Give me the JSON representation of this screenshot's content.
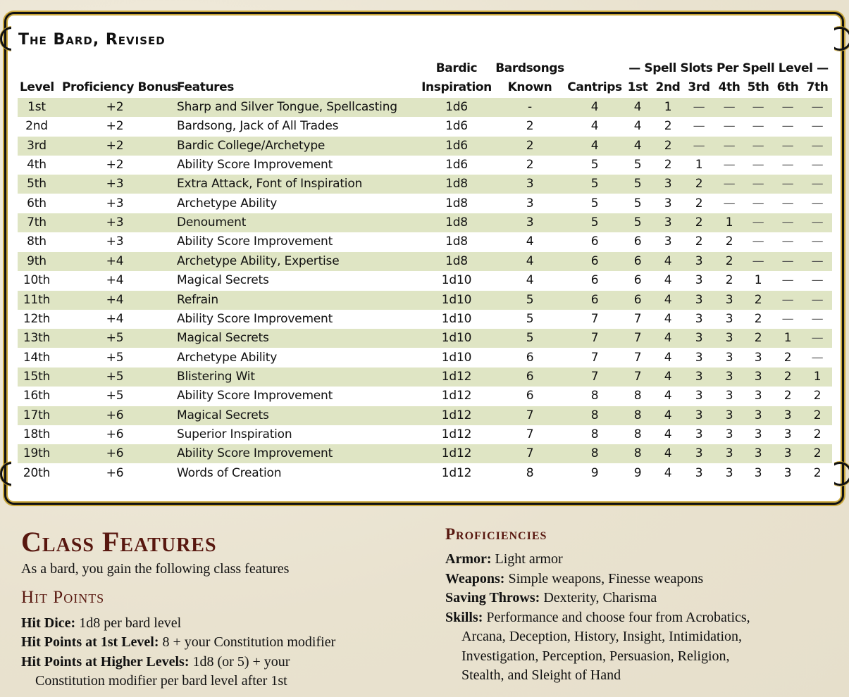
{
  "table": {
    "title": "The Bard, Revised",
    "headers": {
      "level": "Level",
      "proficiency": "Proficiency Bonus",
      "features": "Features",
      "inspiration_1": "Bardic",
      "inspiration_2": "Inspiration",
      "bardsongs_1": "Bardsongs",
      "bardsongs_2": "Known",
      "cantrips": "Cantrips",
      "spell_slots_group": "— Spell Slots Per Spell Level —",
      "slots": [
        "1st",
        "2nd",
        "3rd",
        "4th",
        "5th",
        "6th",
        "7th"
      ]
    },
    "rows": [
      {
        "level": "1st",
        "prof": "+2",
        "features": "Sharp and Silver Tongue, Spellcasting",
        "insp": "1d6",
        "songs": "-",
        "cantrips": "4",
        "slots": [
          "4",
          "1",
          "—",
          "—",
          "—",
          "—",
          "—"
        ]
      },
      {
        "level": "2nd",
        "prof": "+2",
        "features": "Bardsong, Jack of All Trades",
        "insp": "1d6",
        "songs": "2",
        "cantrips": "4",
        "slots": [
          "4",
          "2",
          "—",
          "—",
          "—",
          "—",
          "—"
        ]
      },
      {
        "level": "3rd",
        "prof": "+2",
        "features": "Bardic College/Archetype",
        "insp": "1d6",
        "songs": "2",
        "cantrips": "4",
        "slots": [
          "4",
          "2",
          "—",
          "—",
          "—",
          "—",
          "—"
        ]
      },
      {
        "level": "4th",
        "prof": "+2",
        "features": "Ability Score Improvement",
        "insp": "1d6",
        "songs": "2",
        "cantrips": "5",
        "slots": [
          "5",
          "2",
          "1",
          "—",
          "—",
          "—",
          "—"
        ]
      },
      {
        "level": "5th",
        "prof": "+3",
        "features": "Extra Attack, Font of Inspiration",
        "insp": "1d8",
        "songs": "3",
        "cantrips": "5",
        "slots": [
          "5",
          "3",
          "2",
          "—",
          "—",
          "—",
          "—"
        ]
      },
      {
        "level": "6th",
        "prof": "+3",
        "features": "Archetype Ability",
        "insp": "1d8",
        "songs": "3",
        "cantrips": "5",
        "slots": [
          "5",
          "3",
          "2",
          "—",
          "—",
          "—",
          "—"
        ]
      },
      {
        "level": "7th",
        "prof": "+3",
        "features": "Denoument",
        "insp": "1d8",
        "songs": "3",
        "cantrips": "5",
        "slots": [
          "5",
          "3",
          "2",
          "1",
          "—",
          "—",
          "—"
        ]
      },
      {
        "level": "8th",
        "prof": "+3",
        "features": "Ability Score Improvement",
        "insp": "1d8",
        "songs": "4",
        "cantrips": "6",
        "slots": [
          "6",
          "3",
          "2",
          "2",
          "—",
          "—",
          "—"
        ]
      },
      {
        "level": "9th",
        "prof": "+4",
        "features": "Archetype Ability, Expertise",
        "insp": "1d8",
        "songs": "4",
        "cantrips": "6",
        "slots": [
          "6",
          "4",
          "3",
          "2",
          "—",
          "—",
          "—"
        ]
      },
      {
        "level": "10th",
        "prof": "+4",
        "features": "Magical Secrets",
        "insp": "1d10",
        "songs": "4",
        "cantrips": "6",
        "slots": [
          "6",
          "4",
          "3",
          "2",
          "1",
          "—",
          "—"
        ]
      },
      {
        "level": "11th",
        "prof": "+4",
        "features": "Refrain",
        "insp": "1d10",
        "songs": "5",
        "cantrips": "6",
        "slots": [
          "6",
          "4",
          "3",
          "3",
          "2",
          "—",
          "—"
        ]
      },
      {
        "level": "12th",
        "prof": "+4",
        "features": "Ability Score Improvement",
        "insp": "1d10",
        "songs": "5",
        "cantrips": "7",
        "slots": [
          "7",
          "4",
          "3",
          "3",
          "2",
          "—",
          "—"
        ]
      },
      {
        "level": "13th",
        "prof": "+5",
        "features": "Magical Secrets",
        "insp": "1d10",
        "songs": "5",
        "cantrips": "7",
        "slots": [
          "7",
          "4",
          "3",
          "3",
          "2",
          "1",
          "—"
        ]
      },
      {
        "level": "14th",
        "prof": "+5",
        "features": "Archetype Ability",
        "insp": "1d10",
        "songs": "6",
        "cantrips": "7",
        "slots": [
          "7",
          "4",
          "3",
          "3",
          "3",
          "2",
          "—"
        ]
      },
      {
        "level": "15th",
        "prof": "+5",
        "features": "Blistering Wit",
        "insp": "1d12",
        "songs": "6",
        "cantrips": "7",
        "slots": [
          "7",
          "4",
          "3",
          "3",
          "3",
          "2",
          "1"
        ]
      },
      {
        "level": "16th",
        "prof": "+5",
        "features": "Ability Score Improvement",
        "insp": "1d12",
        "songs": "6",
        "cantrips": "8",
        "slots": [
          "8",
          "4",
          "3",
          "3",
          "3",
          "2",
          "2"
        ]
      },
      {
        "level": "17th",
        "prof": "+6",
        "features": "Magical Secrets",
        "insp": "1d12",
        "songs": "7",
        "cantrips": "8",
        "slots": [
          "8",
          "4",
          "3",
          "3",
          "3",
          "3",
          "2"
        ]
      },
      {
        "level": "18th",
        "prof": "+6",
        "features": "Superior Inspiration",
        "insp": "1d12",
        "songs": "7",
        "cantrips": "8",
        "slots": [
          "8",
          "4",
          "3",
          "3",
          "3",
          "3",
          "2"
        ]
      },
      {
        "level": "19th",
        "prof": "+6",
        "features": "Ability Score Improvement",
        "insp": "1d12",
        "songs": "7",
        "cantrips": "8",
        "slots": [
          "8",
          "4",
          "3",
          "3",
          "3",
          "3",
          "2"
        ]
      },
      {
        "level": "20th",
        "prof": "+6",
        "features": "Words of Creation",
        "insp": "1d12",
        "songs": "8",
        "cantrips": "9",
        "slots": [
          "9",
          "4",
          "3",
          "3",
          "3",
          "3",
          "2"
        ]
      }
    ],
    "stripe_color": "#dfe5c4"
  },
  "class_features": {
    "heading": "Class Features",
    "intro": "As a bard, you gain the following class features",
    "hit_points": {
      "heading": "Hit Points",
      "hit_dice_label": "Hit Dice:",
      "hit_dice_value": "1d8 per bard level",
      "first_level_label": "Hit Points at 1st Level:",
      "first_level_value": "8 + your Constitution modifier",
      "higher_levels_label": "Hit Points at Higher Levels:",
      "higher_levels_value": "1d8 (or 5) + your",
      "higher_levels_value_cont": "Constitution modifier per bard level after 1st"
    },
    "proficiencies": {
      "heading": "Proficiencies",
      "armor_label": "Armor:",
      "armor_value": "Light armor",
      "weapons_label": "Weapons:",
      "weapons_value": "Simple weapons, Finesse weapons",
      "saves_label": "Saving Throws:",
      "saves_value": "Dexterity, Charisma",
      "skills_label": "Skills:",
      "skills_value": "Performance and choose four from Acrobatics,",
      "skills_cont": [
        "Arcana, Deception, History, Insight, Intimidation,",
        "Investigation, Perception, Persuasion, Religion,",
        "Stealth, and Sleight of Hand"
      ]
    }
  },
  "colors": {
    "heading": "#58170f",
    "frame_gold": "#c9a63a",
    "parchment": "#ede7d6"
  }
}
